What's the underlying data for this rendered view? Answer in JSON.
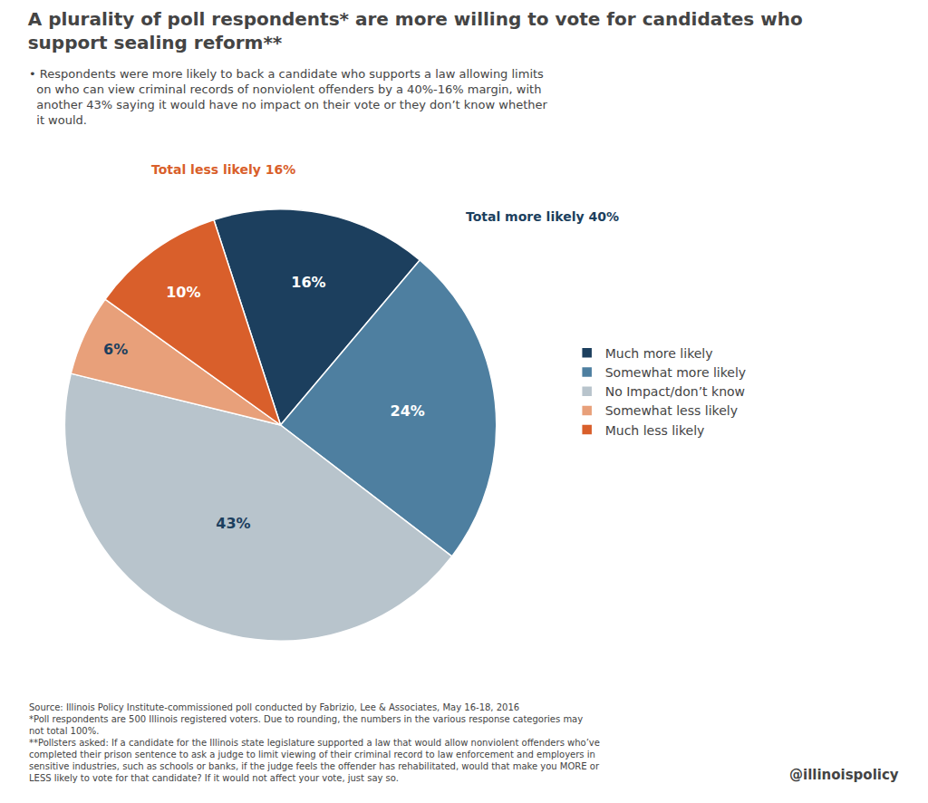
{
  "chart_data": {
    "type": "pie",
    "title": "A plurality of poll respondents* are more willing to vote for candidates who\nsupport sealing reform**",
    "subtitle": "• Respondents were more likely to back a candidate who supports a law allowing limits\n  on who can view criminal records of nonviolent offenders by a 40%-16% margin, with\n  another 43% saying it would have no impact on their vote or they don’t know whether\n  it would.",
    "categories": [
      "Much more likely",
      "Somewhat more likely",
      "No Impact/don’t know",
      "Somewhat less likely",
      "Much less likely"
    ],
    "values": [
      16,
      24,
      43,
      6,
      10
    ],
    "value_labels": [
      "16%",
      "24%",
      "43%",
      "6%",
      "10%"
    ],
    "colors": [
      "#1c3f5e",
      "#4e7fa0",
      "#b8c4cc",
      "#e8a07a",
      "#d95f2b"
    ],
    "data_labels": true,
    "legend": "right",
    "annotations": [
      {
        "text": "Total more likely 40%",
        "color": "#1c3f5e"
      },
      {
        "text": "Total less likely 16%",
        "color": "#d95f2b"
      }
    ],
    "source": "Source: Illinois Policy Institute-commissioned poll conducted by Fabrizio, Lee & Associates, May 16-18, 2016\n*Poll respondents are 500 Illinois registered voters. Due to rounding, the numbers in the various response categories may\nnot total 100%.\n**Pollsters asked: If a candidate for the Illinois state legislature supported a law that would allow nonviolent offenders who’ve\ncompleted their prison sentence to ask a judge to limit viewing of their criminal record to law enforcement and employers in\nsensitive industries, such as schools or banks, if the judge feels the offender has rehabilitated, would that make you MORE or\nLESS likely to vote for that candidate? If it would not affect your vote, just say so.",
    "credit": "@illinoispolicy"
  }
}
